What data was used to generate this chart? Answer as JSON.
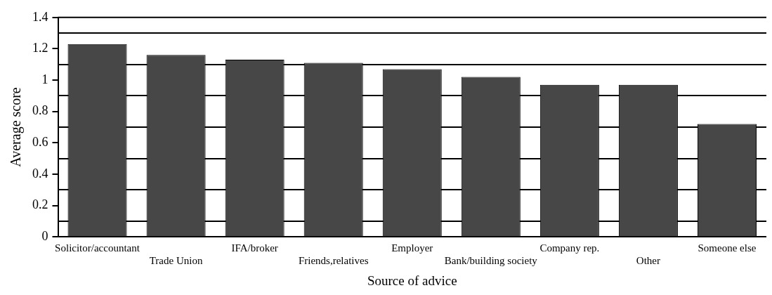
{
  "chart_data": {
    "type": "bar",
    "xlabel": "Source of advice",
    "ylabel": "Average score",
    "categories": [
      "Solicitor/accountant",
      "Trade Union",
      "IFA/broker",
      "Friends,relatives",
      "Employer",
      "Bank/building society",
      "Company rep.",
      "Other",
      "Someone else"
    ],
    "values": [
      1.23,
      1.16,
      1.13,
      1.11,
      1.07,
      1.02,
      0.97,
      0.97,
      0.72
    ],
    "color": "#474747",
    "ylim": [
      0,
      1.4
    ],
    "yticks": [
      0,
      {
        "value": 0.1,
        "label": null
      },
      0.2,
      {
        "value": 0.3,
        "label": null
      },
      0.4,
      {
        "value": 0.5,
        "label": null
      },
      0.6,
      {
        "value": 0.7,
        "label": null
      },
      0.8,
      {
        "value": 0.9,
        "label": null
      },
      1,
      {
        "value": 1.1,
        "label": null
      },
      1.2,
      {
        "value": 1.3,
        "label": null
      },
      1.4
    ],
    "grid": "y",
    "legend": false
  }
}
